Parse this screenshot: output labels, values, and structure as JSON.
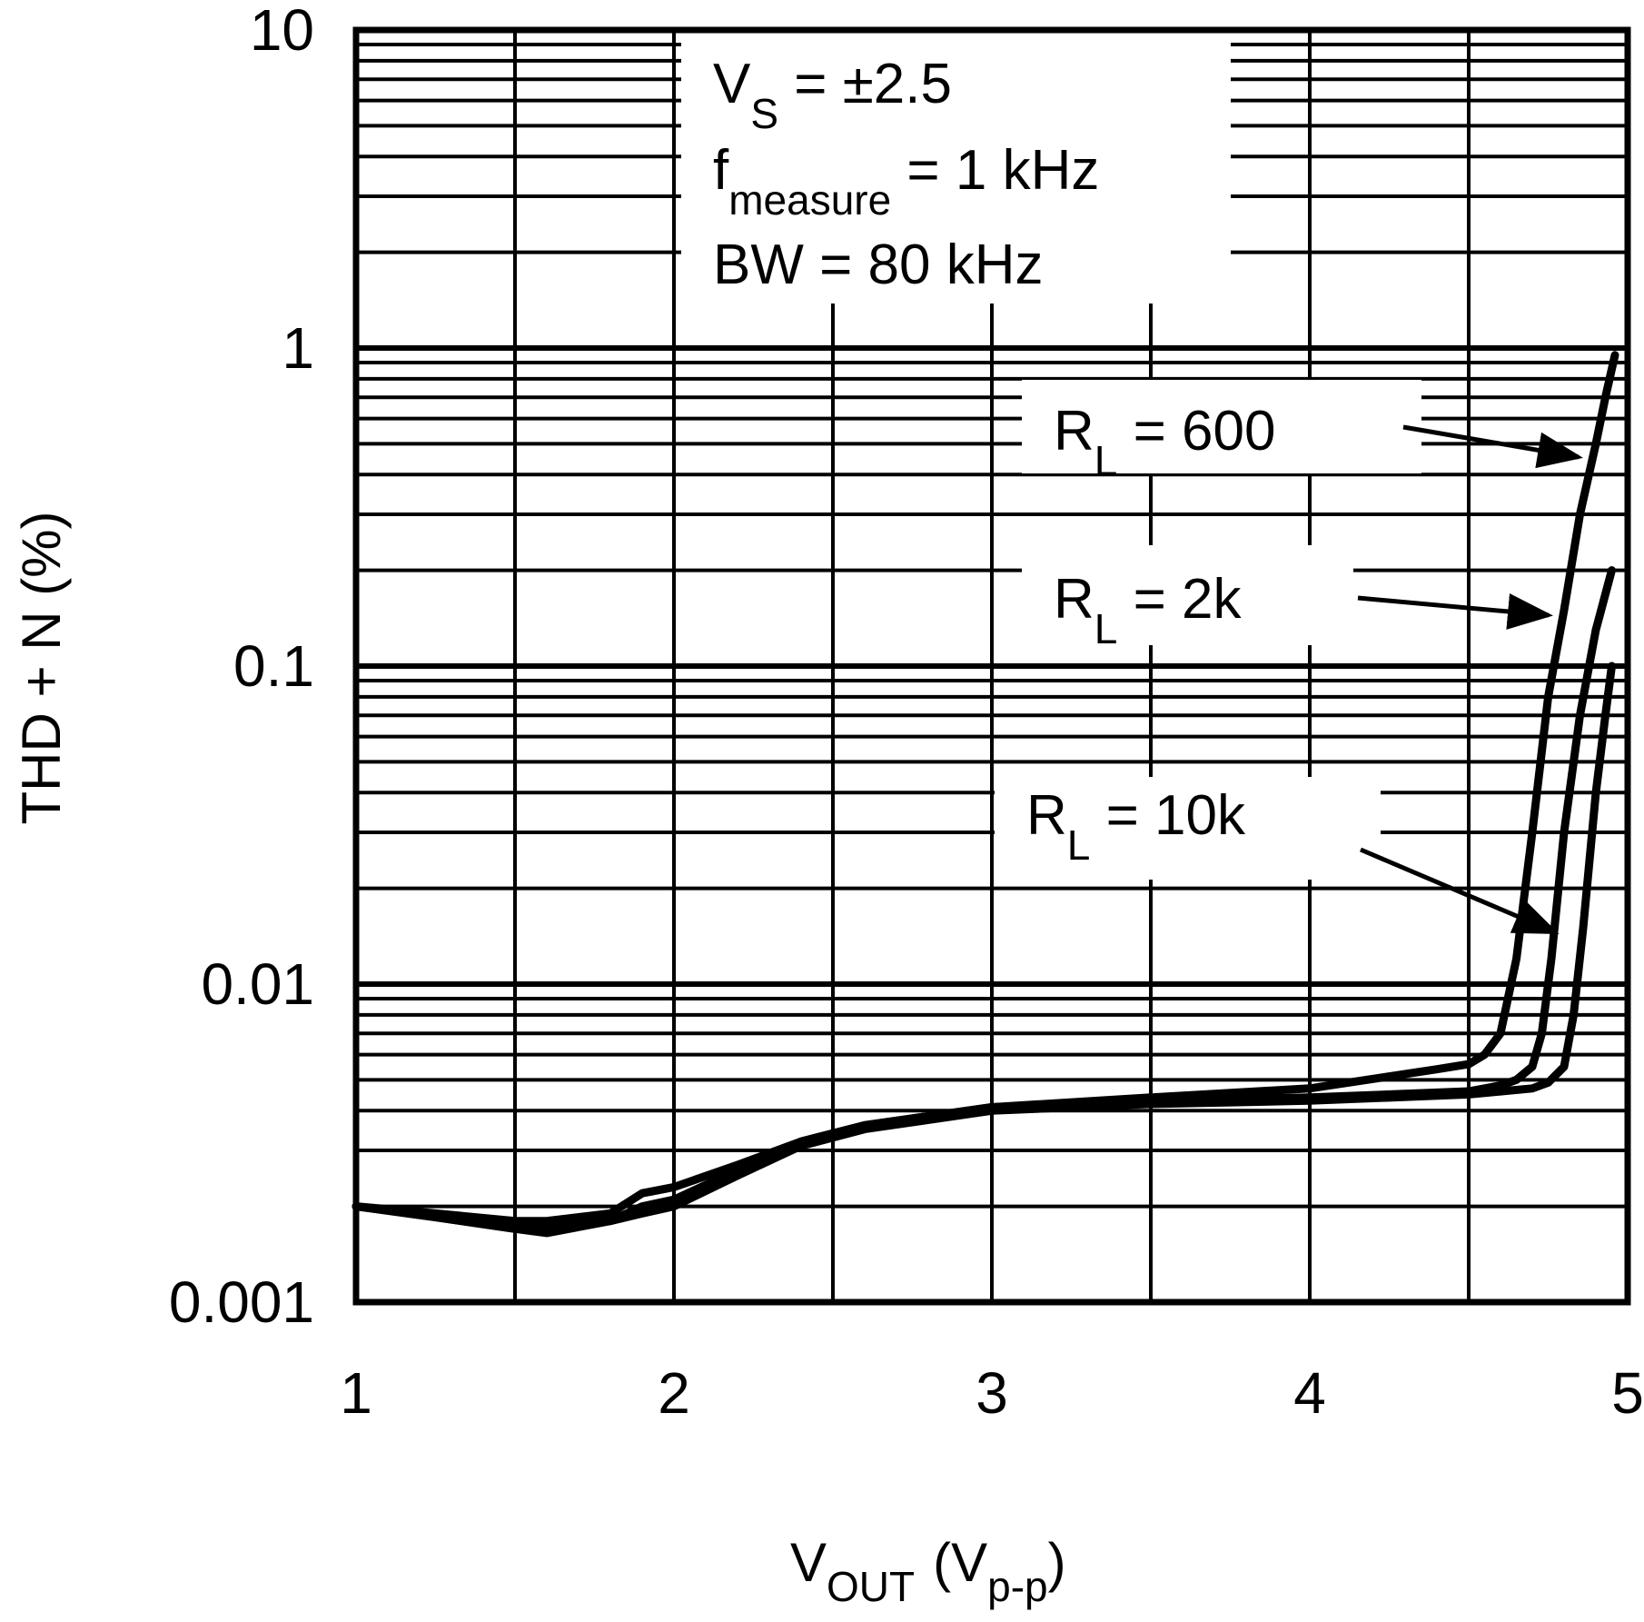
{
  "chart_data": {
    "type": "line",
    "title": "",
    "xlabel": "V",
    "xlabel_sub": "OUT",
    "xlabel_unit_open": "(V",
    "xlabel_unit_sub": "p-p",
    "xlabel_unit_close": ")",
    "ylabel": "THD + N (%)",
    "xscale": "linear",
    "yscale": "log",
    "xlim": [
      1,
      5
    ],
    "ylim": [
      0.001,
      10
    ],
    "x_ticks": [
      1,
      2,
      3,
      4,
      5
    ],
    "x_tick_labels": [
      "1",
      "2",
      "3",
      "4",
      "5"
    ],
    "y_ticks": [
      0.001,
      0.01,
      0.1,
      1,
      10
    ],
    "y_tick_labels": [
      "0.001",
      "0.01",
      "0.1",
      "1",
      "10"
    ],
    "grid": true,
    "conditions": [
      {
        "main": "V",
        "sub": "S",
        "rest": " = ±2.5"
      },
      {
        "main": "f",
        "sub": "measure",
        "rest": " = 1 kHz"
      },
      {
        "main": "BW = 80 kHz",
        "sub": "",
        "rest": ""
      }
    ],
    "series": [
      {
        "name": "R_L = 600",
        "label_main": "R",
        "label_sub": "L",
        "label_rest": " = 600",
        "x": [
          1.0,
          1.25,
          1.5,
          1.6,
          1.8,
          1.9,
          2.0,
          2.2,
          2.4,
          2.6,
          3.0,
          3.5,
          4.0,
          4.4,
          4.5,
          4.55,
          4.6,
          4.65,
          4.7,
          4.75,
          4.8,
          4.85,
          4.9,
          4.93,
          4.96
        ],
        "values": [
          0.002,
          0.0019,
          0.0018,
          0.0018,
          0.0019,
          0.0022,
          0.0023,
          0.0027,
          0.0032,
          0.0036,
          0.0041,
          0.0044,
          0.0047,
          0.0054,
          0.0056,
          0.006,
          0.007,
          0.012,
          0.03,
          0.08,
          0.15,
          0.3,
          0.5,
          0.7,
          0.95
        ]
      },
      {
        "name": "R_L = 2k",
        "label_main": "R",
        "label_sub": "L",
        "label_rest": " = 2k",
        "x": [
          1.0,
          1.25,
          1.5,
          1.6,
          1.8,
          1.9,
          2.0,
          2.2,
          2.4,
          2.6,
          3.0,
          3.5,
          4.0,
          4.5,
          4.6,
          4.65,
          4.7,
          4.73,
          4.76,
          4.8,
          4.85,
          4.9,
          4.95
        ],
        "values": [
          0.002,
          0.00185,
          0.0017,
          0.0017,
          0.0018,
          0.002,
          0.0021,
          0.0026,
          0.0032,
          0.0036,
          0.0041,
          0.0043,
          0.0044,
          0.0046,
          0.0048,
          0.005,
          0.0055,
          0.007,
          0.012,
          0.03,
          0.07,
          0.13,
          0.2
        ]
      },
      {
        "name": "R_L = 10k",
        "label_main": "R",
        "label_sub": "L",
        "label_rest": " = 10k",
        "x": [
          1.0,
          1.25,
          1.5,
          1.6,
          1.8,
          1.9,
          2.0,
          2.2,
          2.4,
          2.6,
          3.0,
          3.5,
          4.0,
          4.5,
          4.7,
          4.75,
          4.8,
          4.83,
          4.86,
          4.9,
          4.93,
          4.95
        ],
        "values": [
          0.002,
          0.00185,
          0.0017,
          0.00165,
          0.0018,
          0.0019,
          0.002,
          0.0025,
          0.0031,
          0.0035,
          0.004,
          0.0042,
          0.0043,
          0.0045,
          0.0047,
          0.0049,
          0.0055,
          0.008,
          0.015,
          0.04,
          0.07,
          0.1
        ]
      }
    ]
  }
}
